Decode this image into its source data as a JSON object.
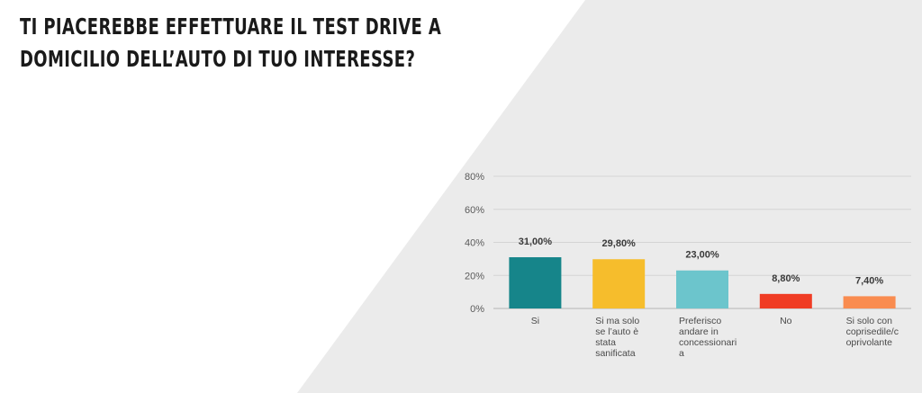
{
  "title_lines": [
    "TI PIACEREBBE EFFETTUARE IL TEST DRIVE A",
    "DOMICILIO DELL’AUTO DI TUO INTERESSE?"
  ],
  "chart_data": {
    "type": "bar",
    "categories": [
      "Si",
      "Si ma solo se l’auto è stata sanificata",
      "Preferisco andare in concessionaria",
      "No",
      "Si solo con coprisedile/coprivolante"
    ],
    "category_label_lines": [
      [
        "Si"
      ],
      [
        "Si ma solo",
        "se l’auto è",
        "stata",
        "sanificata"
      ],
      [
        "Preferisco",
        "andare in",
        "concessionari",
        "a"
      ],
      [
        "No"
      ],
      [
        "Si solo con",
        "coprisedile/c",
        "oprivolante"
      ]
    ],
    "values": [
      31.0,
      29.8,
      23.0,
      8.8,
      7.4
    ],
    "data_labels": [
      "31,00%",
      "29,80%",
      "23,00%",
      "8,80%",
      "7,40%"
    ],
    "colors": [
      "#16858a",
      "#f6bd2c",
      "#6cc5cc",
      "#f03c24",
      "#f98c50"
    ],
    "y_ticks": [
      "0%",
      "20%",
      "40%",
      "60%",
      "80%"
    ],
    "ylim": [
      0,
      80
    ],
    "grid": true,
    "background_color": "#ebebeb"
  }
}
